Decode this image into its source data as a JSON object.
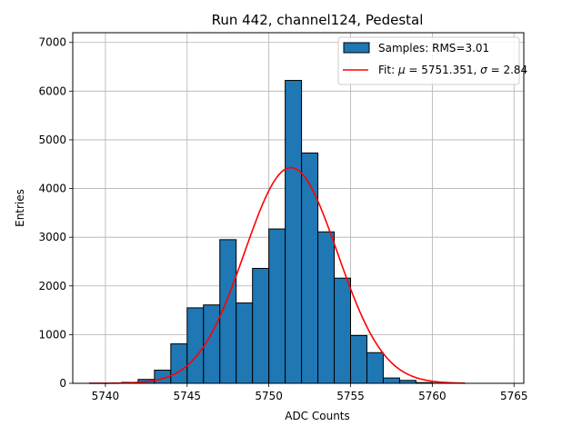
{
  "chart_data": {
    "type": "bar",
    "title": "Run 442, channel124, Pedestal",
    "xlabel": "ADC Counts",
    "ylabel": "Entries",
    "xlim": [
      5738,
      5765.6
    ],
    "ylim": [
      0,
      7200
    ],
    "xticks": [
      5740,
      5745,
      5750,
      5755,
      5760,
      5765
    ],
    "yticks": [
      0,
      1000,
      2000,
      3000,
      4000,
      5000,
      6000,
      7000
    ],
    "grid": true,
    "legend_placement": "top-right",
    "bin_width": 1,
    "bins": [
      {
        "x": 5741,
        "value": 20
      },
      {
        "x": 5742,
        "value": 80
      },
      {
        "x": 5743,
        "value": 270
      },
      {
        "x": 5744,
        "value": 810
      },
      {
        "x": 5745,
        "value": 1550
      },
      {
        "x": 5746,
        "value": 1610
      },
      {
        "x": 5747,
        "value": 2950
      },
      {
        "x": 5748,
        "value": 1650
      },
      {
        "x": 5749,
        "value": 2360
      },
      {
        "x": 5750,
        "value": 3170
      },
      {
        "x": 5751,
        "value": 6220
      },
      {
        "x": 5752,
        "value": 4730
      },
      {
        "x": 5753,
        "value": 3110
      },
      {
        "x": 5754,
        "value": 2160
      },
      {
        "x": 5755,
        "value": 980
      },
      {
        "x": 5756,
        "value": 630
      },
      {
        "x": 5757,
        "value": 110
      },
      {
        "x": 5758,
        "value": 60
      },
      {
        "x": 5759,
        "value": 15
      },
      {
        "x": 5760,
        "value": 5
      }
    ],
    "fit": {
      "mu": 5751.351,
      "sigma": 2.84,
      "amplitude": 4430,
      "x_range": [
        5739,
        5762
      ]
    },
    "series": [
      {
        "name": "Samples: RMS=3.01",
        "color": "#1f77b4",
        "kind": "histogram"
      },
      {
        "name": "Fit: μ = 5751.351, σ = 2.84",
        "color": "#ff0000",
        "kind": "line"
      }
    ],
    "legend": {
      "samples_label": "Samples: RMS=3.01",
      "fit_prefix": "Fit: ",
      "fit_mu_symbol": "μ",
      "fit_mu_text": " = 5751.351, ",
      "fit_sigma_symbol": "σ",
      "fit_sigma_text": " = 2.84"
    }
  }
}
